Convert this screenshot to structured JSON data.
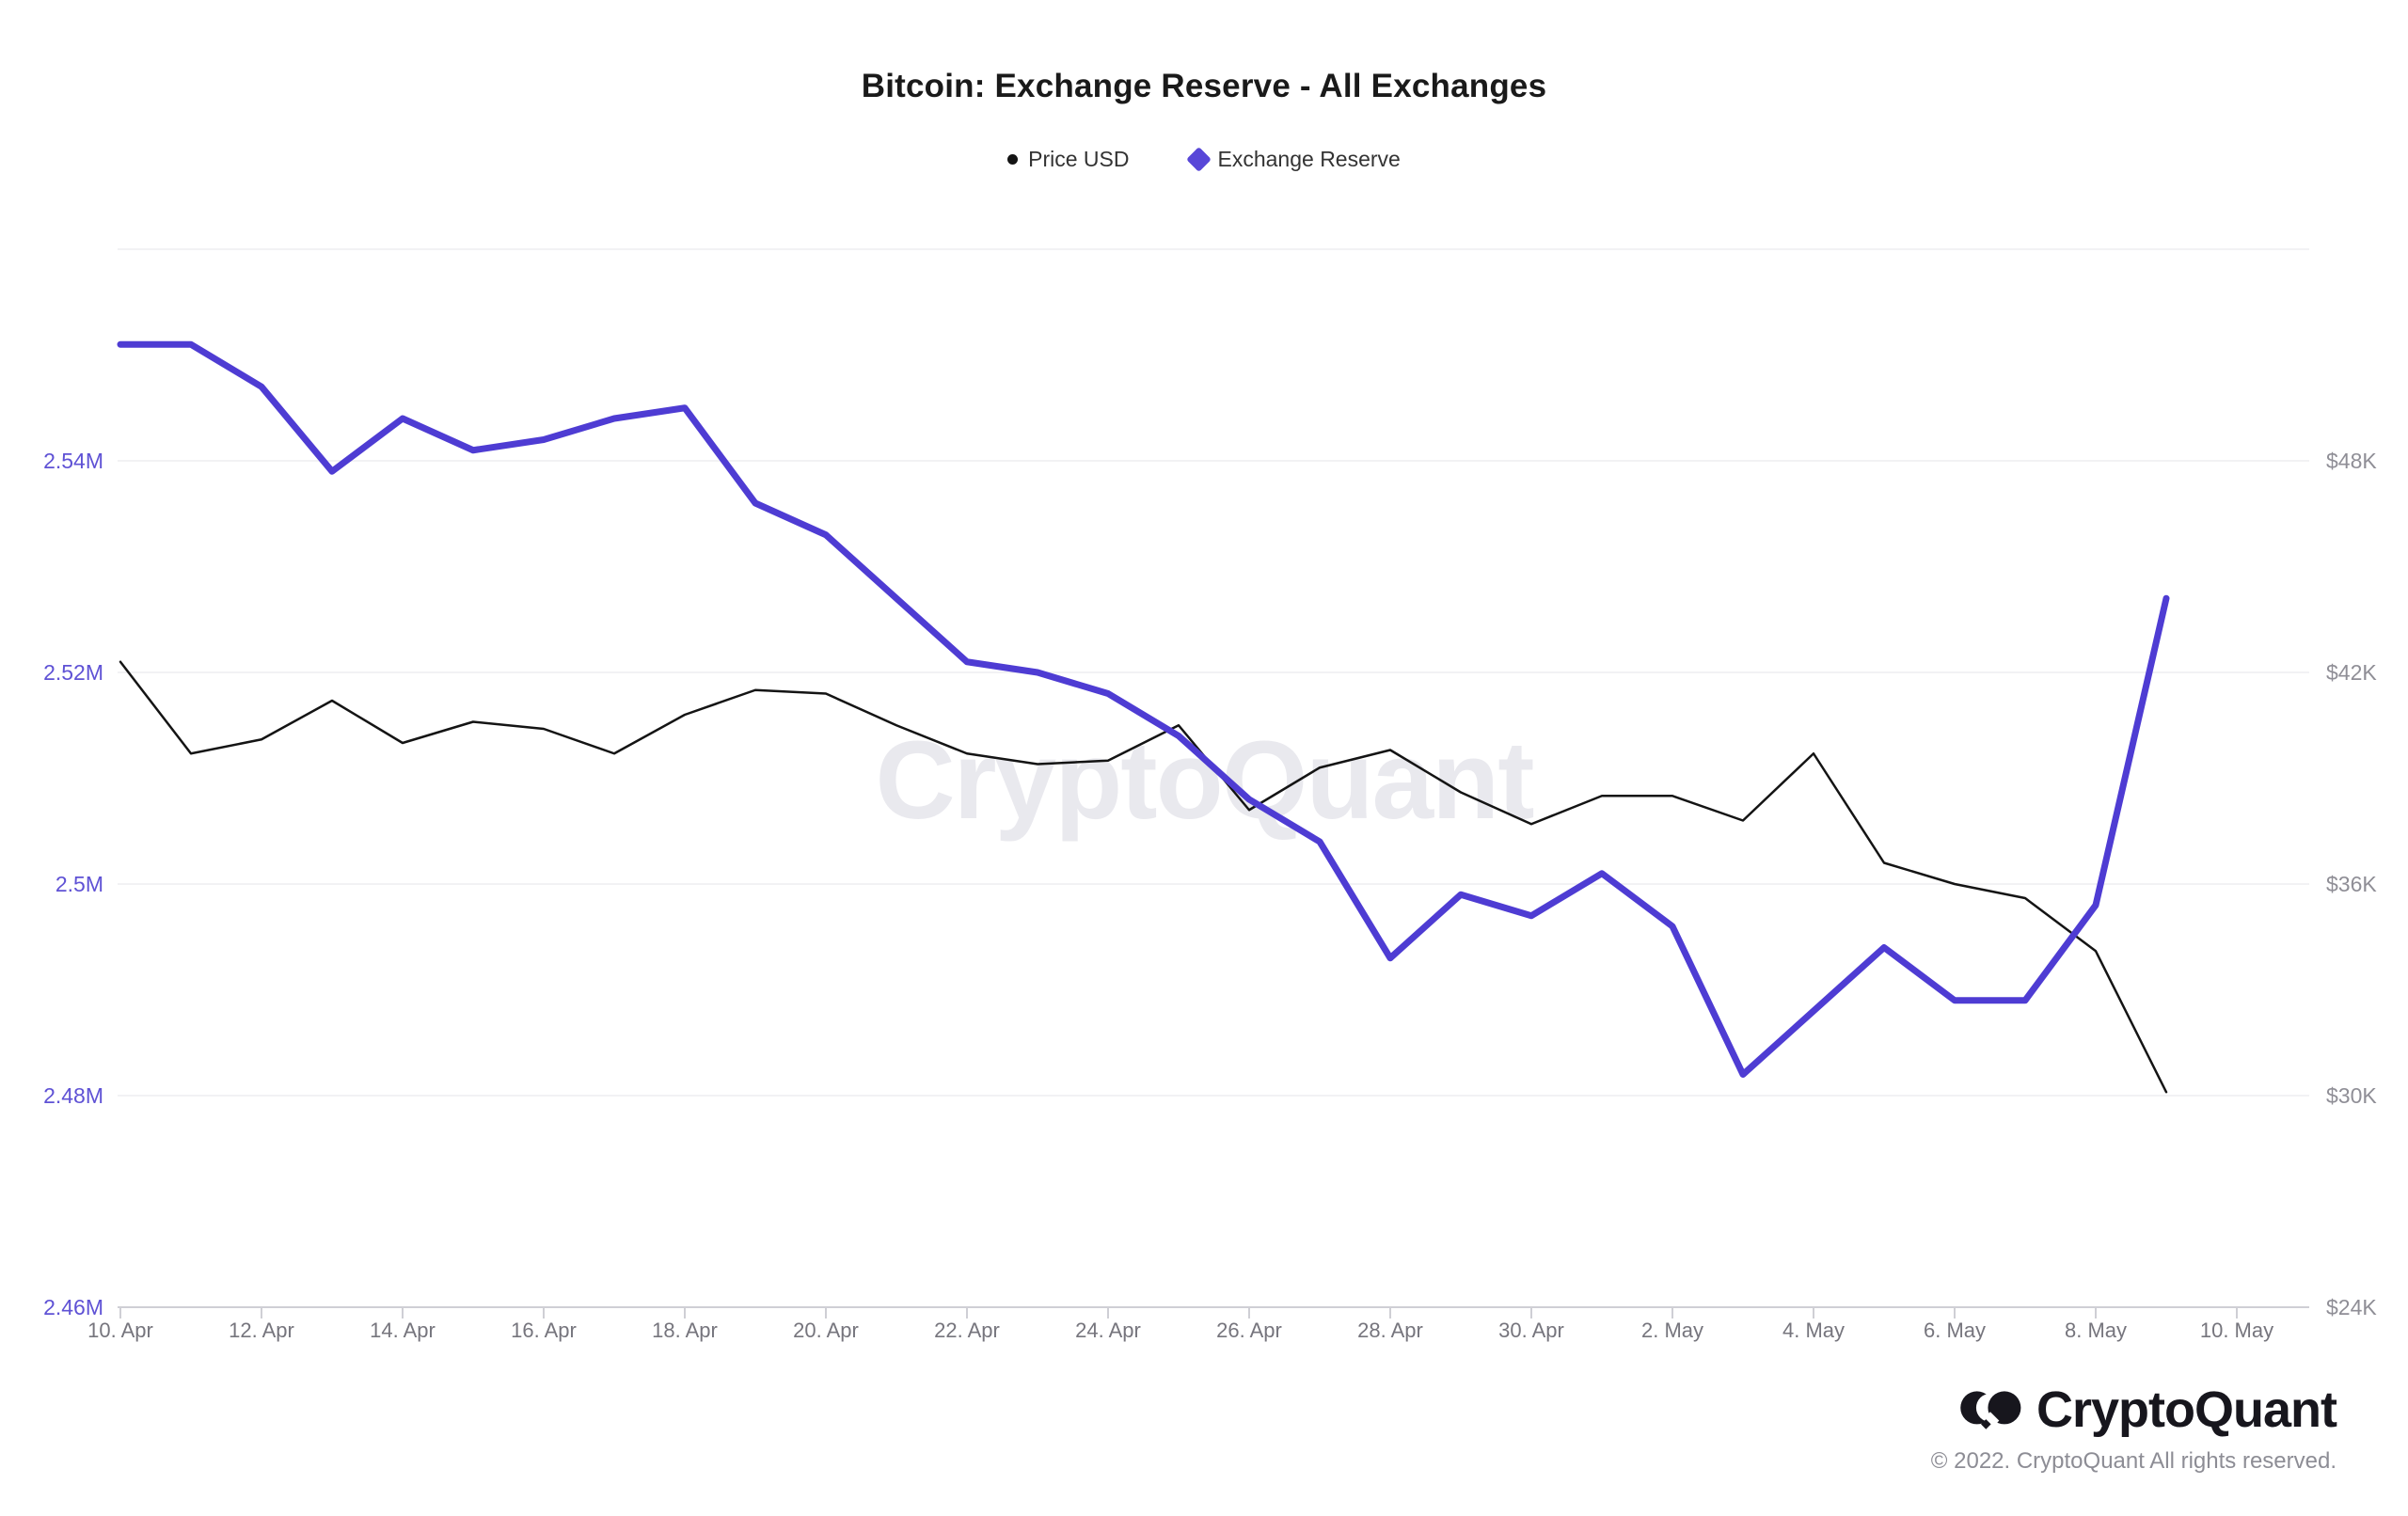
{
  "header": {
    "title": "Bitcoin: Exchange Reserve - All Exchanges"
  },
  "legend": {
    "items": [
      {
        "label": "Price USD",
        "marker": "dot",
        "color": "#141414"
      },
      {
        "label": "Exchange Reserve",
        "marker": "diamond",
        "color": "#5847d8"
      }
    ]
  },
  "watermark": {
    "text": "CryptoQuant"
  },
  "footer": {
    "logo_text": "CryptoQuant",
    "copyright": "© 2022. CryptoQuant All rights reserved."
  },
  "chart_data": {
    "type": "line",
    "title": "Bitcoin: Exchange Reserve - All Exchanges",
    "x": [
      "10 Apr",
      "11 Apr",
      "12 Apr",
      "13 Apr",
      "14 Apr",
      "15 Apr",
      "16 Apr",
      "17 Apr",
      "18 Apr",
      "19 Apr",
      "20 Apr",
      "21 Apr",
      "22 Apr",
      "23 Apr",
      "24 Apr",
      "25 Apr",
      "26 Apr",
      "27 Apr",
      "28 Apr",
      "29 Apr",
      "30 Apr",
      "1 May",
      "2 May",
      "3 May",
      "4 May",
      "5 May",
      "6 May",
      "7 May",
      "8 May",
      "9 May"
    ],
    "x_tick_labels": [
      "10. Apr",
      "12. Apr",
      "14. Apr",
      "16. Apr",
      "18. Apr",
      "20. Apr",
      "22. Apr",
      "24. Apr",
      "26. Apr",
      "28. Apr",
      "30. Apr",
      "2. May",
      "4. May",
      "6. May",
      "8. May",
      "10. May"
    ],
    "series": [
      {
        "name": "Price USD",
        "axis": "right",
        "color": "#141414",
        "stroke_width": 2.5,
        "unit": "USD",
        "values": [
          42300,
          39700,
          40100,
          41200,
          40000,
          40600,
          40400,
          39700,
          40800,
          41500,
          41400,
          40500,
          39700,
          39400,
          39500,
          40500,
          38100,
          39300,
          39800,
          38600,
          37700,
          38500,
          38500,
          37800,
          39700,
          36600,
          36000,
          35600,
          34100,
          30100
        ]
      },
      {
        "name": "Exchange Reserve",
        "axis": "left",
        "color": "#4e3cd3",
        "stroke_width": 7,
        "unit": "M BTC",
        "values": [
          2.551,
          2.551,
          2.547,
          2.539,
          2.544,
          2.541,
          2.542,
          2.544,
          2.545,
          2.536,
          2.533,
          2.527,
          2.521,
          2.52,
          2.518,
          2.514,
          2.508,
          2.504,
          2.493,
          2.499,
          2.497,
          2.501,
          2.496,
          2.482,
          2.488,
          2.494,
          2.489,
          2.489,
          2.498,
          2.527
        ]
      }
    ],
    "left_axis": {
      "tick_labels": [
        "2.54M",
        "2.52M",
        "2.5M",
        "2.48M",
        "2.46M"
      ],
      "min": 2.46,
      "max": 2.56,
      "color": "#5f52d5"
    },
    "right_axis": {
      "tick_labels": [
        "$48K",
        "$42K",
        "$36K",
        "$30K",
        "$24K"
      ],
      "min": 24000,
      "max": 54000,
      "color": "#8f8e96"
    },
    "grid": true,
    "legend_position": "top"
  },
  "colors": {
    "grid": "#ededf1",
    "axis_line": "#cfcfd5",
    "tick": "#cfcfd5",
    "x_label": "#76757d",
    "title": "#1a1a1a",
    "legend_text": "#333333",
    "watermark": "#dcdbe4"
  }
}
